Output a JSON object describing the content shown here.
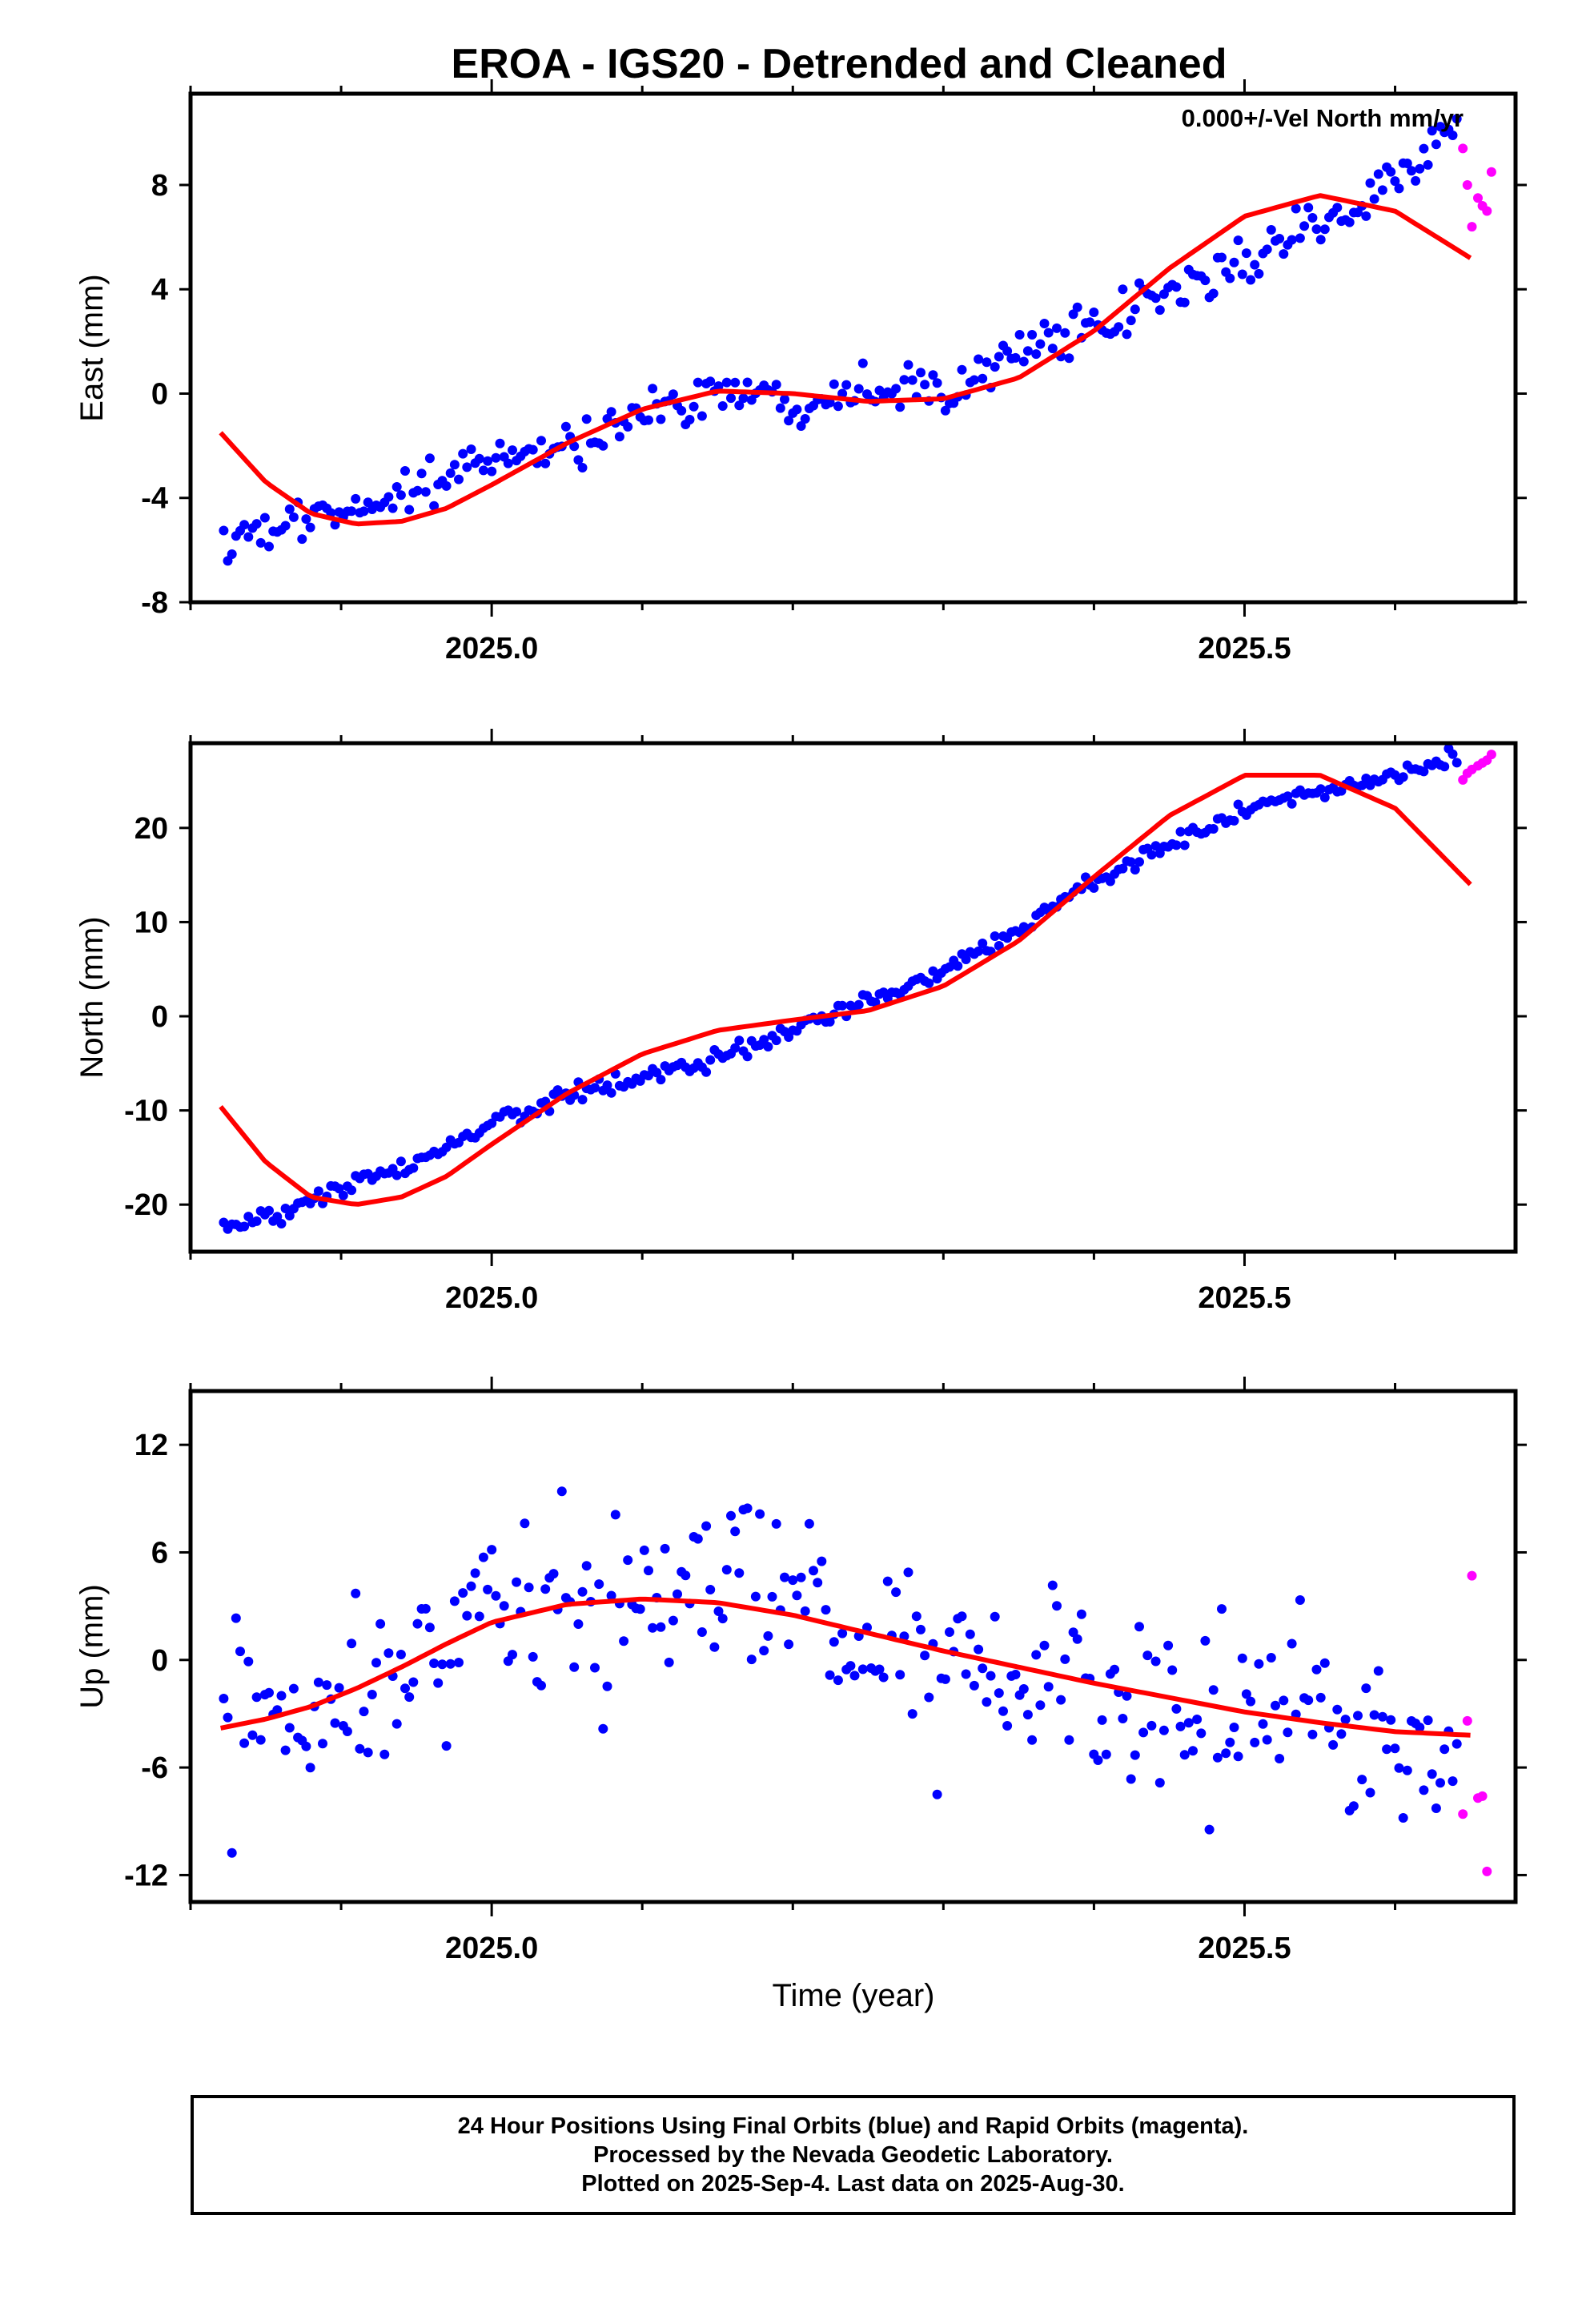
{
  "title": "EROA - IGS20 - Detrended and Cleaned",
  "annotation": "0.000+/-Vel North mm/yr",
  "x_axis_label": "Time (year)",
  "x_tick_labels": [
    "2025.0",
    "2025.5"
  ],
  "footer": {
    "line1": "24 Hour Positions Using Final Orbits (blue) and Rapid Orbits (magenta).",
    "line2": "Processed by the Nevada Geodetic Laboratory.",
    "line3": "Plotted on 2025-Sep-4. Last data on 2025-Aug-30."
  },
  "colors": {
    "final_orbits": "#0000ff",
    "rapid_orbits": "#ff00ff",
    "model_fit": "#ff0000",
    "axes": "#000000"
  },
  "chart_data": [
    {
      "type": "scatter",
      "ylabel": "East (mm)",
      "xlim": [
        2024.8,
        2025.68
      ],
      "ylim": [
        -8,
        11.5
      ],
      "yticks": [
        -8,
        -4,
        0,
        4,
        8
      ],
      "ytick_labels": [
        "-8",
        "-4",
        "0",
        "4",
        "8"
      ],
      "xticks": [
        2025.0,
        2025.5
      ],
      "grid": false,
      "series": [
        {
          "name": "Final Orbits",
          "color": "#0000ff",
          "trend": [
            [
              2024.82,
              -5.8
            ],
            [
              2024.85,
              -5.3
            ],
            [
              2024.9,
              -4.6
            ],
            [
              2024.95,
              -3.6
            ],
            [
              2025.0,
              -2.6
            ],
            [
              2025.05,
              -2.0
            ],
            [
              2025.1,
              -0.9
            ],
            [
              2025.15,
              0.2
            ],
            [
              2025.2,
              -0.3
            ],
            [
              2025.25,
              0.4
            ],
            [
              2025.3,
              0.2
            ],
            [
              2025.35,
              1.8
            ],
            [
              2025.4,
              2.3
            ],
            [
              2025.45,
              3.8
            ],
            [
              2025.5,
              5.0
            ],
            [
              2025.55,
              6.6
            ],
            [
              2025.6,
              8.2
            ],
            [
              2025.64,
              10.1
            ]
          ],
          "amp_mm": 1.2
        },
        {
          "name": "Rapid Orbits",
          "color": "#ff00ff",
          "points": [
            [
              2025.645,
              9.4
            ],
            [
              2025.648,
              8.0
            ],
            [
              2025.651,
              6.4
            ],
            [
              2025.655,
              7.5
            ],
            [
              2025.658,
              7.2
            ],
            [
              2025.661,
              7.0
            ],
            [
              2025.664,
              8.5
            ]
          ]
        },
        {
          "name": "Model",
          "color": "#ff0000",
          "curve": [
            [
              2024.82,
              -1.5
            ],
            [
              2024.85,
              -3.4
            ],
            [
              2024.88,
              -4.6
            ],
            [
              2024.91,
              -5.0
            ],
            [
              2024.94,
              -4.9
            ],
            [
              2024.97,
              -4.4
            ],
            [
              2025.0,
              -3.5
            ],
            [
              2025.05,
              -1.9
            ],
            [
              2025.1,
              -0.6
            ],
            [
              2025.15,
              0.1
            ],
            [
              2025.2,
              0.0
            ],
            [
              2025.25,
              -0.3
            ],
            [
              2025.3,
              -0.2
            ],
            [
              2025.35,
              0.6
            ],
            [
              2025.4,
              2.4
            ],
            [
              2025.45,
              4.8
            ],
            [
              2025.5,
              6.8
            ],
            [
              2025.55,
              7.6
            ],
            [
              2025.6,
              7.0
            ],
            [
              2025.65,
              5.2
            ]
          ]
        }
      ]
    },
    {
      "type": "scatter",
      "ylabel": "North (mm)",
      "xlim": [
        2024.8,
        2025.68
      ],
      "ylim": [
        -25,
        29
      ],
      "yticks": [
        -20,
        -10,
        0,
        10,
        20
      ],
      "ytick_labels": [
        "-20",
        "-10",
        "0",
        "10",
        "20"
      ],
      "xticks": [
        2025.0,
        2025.5
      ],
      "grid": false,
      "series": [
        {
          "name": "Final Orbits",
          "color": "#0000ff",
          "trend": [
            [
              2024.82,
              -22.5
            ],
            [
              2024.85,
              -21.8
            ],
            [
              2024.9,
              -18.4
            ],
            [
              2024.95,
              -15.5
            ],
            [
              2025.0,
              -11.5
            ],
            [
              2025.05,
              -8.3
            ],
            [
              2025.1,
              -6.6
            ],
            [
              2025.15,
              -4.5
            ],
            [
              2025.2,
              -1.5
            ],
            [
              2025.25,
              1.6
            ],
            [
              2025.3,
              4.9
            ],
            [
              2025.35,
              9.2
            ],
            [
              2025.4,
              14.5
            ],
            [
              2025.45,
              18.2
            ],
            [
              2025.5,
              21.8
            ],
            [
              2025.55,
              23.8
            ],
            [
              2025.6,
              25.7
            ],
            [
              2025.64,
              27.5
            ]
          ],
          "amp_mm": 1.3
        },
        {
          "name": "Rapid Orbits",
          "color": "#ff00ff",
          "points": [
            [
              2025.645,
              25.1
            ],
            [
              2025.648,
              25.8
            ],
            [
              2025.651,
              26.2
            ],
            [
              2025.655,
              26.6
            ],
            [
              2025.658,
              26.9
            ],
            [
              2025.661,
              27.2
            ],
            [
              2025.664,
              27.8
            ]
          ]
        },
        {
          "name": "Model",
          "color": "#ff0000",
          "curve": [
            [
              2024.82,
              -9.6
            ],
            [
              2024.85,
              -15.5
            ],
            [
              2024.88,
              -19.2
            ],
            [
              2024.91,
              -20.0
            ],
            [
              2024.94,
              -19.2
            ],
            [
              2024.97,
              -17.0
            ],
            [
              2025.0,
              -13.6
            ],
            [
              2025.05,
              -8.2
            ],
            [
              2025.1,
              -4.0
            ],
            [
              2025.15,
              -1.5
            ],
            [
              2025.2,
              -0.4
            ],
            [
              2025.25,
              0.6
            ],
            [
              2025.3,
              3.2
            ],
            [
              2025.35,
              8.0
            ],
            [
              2025.4,
              14.8
            ],
            [
              2025.45,
              21.3
            ],
            [
              2025.5,
              25.6
            ],
            [
              2025.55,
              25.6
            ],
            [
              2025.6,
              22.1
            ],
            [
              2025.65,
              14.0
            ]
          ]
        }
      ]
    },
    {
      "type": "scatter",
      "ylabel": "Up (mm)",
      "xlim": [
        2024.8,
        2025.68
      ],
      "ylim": [
        -13.5,
        15
      ],
      "yticks": [
        -12,
        -6,
        0,
        6,
        12
      ],
      "ytick_labels": [
        "-12",
        "-6",
        "0",
        "6",
        "12"
      ],
      "xticks": [
        2025.0,
        2025.5
      ],
      "grid": false,
      "series": [
        {
          "name": "Final Orbits",
          "color": "#0000ff",
          "trend": [
            [
              2024.82,
              -3.5
            ],
            [
              2024.85,
              -4.2
            ],
            [
              2024.9,
              -1.8
            ],
            [
              2024.95,
              0.4
            ],
            [
              2025.0,
              3.0
            ],
            [
              2025.05,
              3.4
            ],
            [
              2025.1,
              3.2
            ],
            [
              2025.15,
              4.1
            ],
            [
              2025.2,
              3.2
            ],
            [
              2025.25,
              1.0
            ],
            [
              2025.3,
              -1.2
            ],
            [
              2025.35,
              -1.8
            ],
            [
              2025.4,
              -2.0
            ],
            [
              2025.45,
              -3.2
            ],
            [
              2025.5,
              -3.0
            ],
            [
              2025.55,
              -2.2
            ],
            [
              2025.6,
              -5.4
            ],
            [
              2025.64,
              -7.5
            ]
          ],
          "amp_mm": 6.5
        },
        {
          "name": "Rapid Orbits",
          "color": "#ff00ff",
          "points": [
            [
              2025.645,
              -8.6
            ],
            [
              2025.648,
              -3.4
            ],
            [
              2025.651,
              4.7
            ],
            [
              2025.655,
              -7.7
            ],
            [
              2025.658,
              -7.6
            ],
            [
              2025.661,
              -11.8
            ]
          ]
        },
        {
          "name": "Model",
          "color": "#ff0000",
          "curve": [
            [
              2024.82,
              -3.8
            ],
            [
              2024.85,
              -3.3
            ],
            [
              2024.88,
              -2.6
            ],
            [
              2024.91,
              -1.6
            ],
            [
              2024.94,
              -0.4
            ],
            [
              2024.97,
              0.9
            ],
            [
              2025.0,
              2.1
            ],
            [
              2025.05,
              3.1
            ],
            [
              2025.1,
              3.4
            ],
            [
              2025.15,
              3.2
            ],
            [
              2025.2,
              2.5
            ],
            [
              2025.25,
              1.5
            ],
            [
              2025.3,
              0.5
            ],
            [
              2025.35,
              -0.4
            ],
            [
              2025.4,
              -1.3
            ],
            [
              2025.45,
              -2.1
            ],
            [
              2025.5,
              -2.9
            ],
            [
              2025.55,
              -3.5
            ],
            [
              2025.6,
              -4.0
            ],
            [
              2025.65,
              -4.2
            ]
          ]
        }
      ]
    }
  ]
}
